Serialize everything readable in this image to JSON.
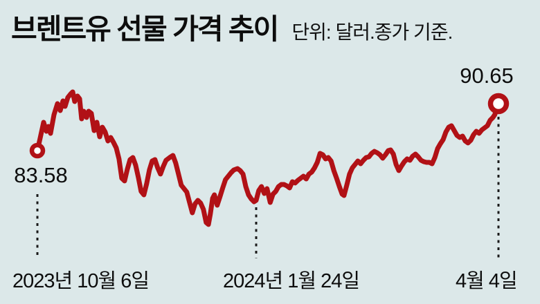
{
  "header": {
    "title": "브렌트유 선물 가격 추이",
    "unit_note": "단위: 달러.종가 기준."
  },
  "chart_data": {
    "type": "line",
    "title": "브렌트유 선물 가격 추이",
    "unit": "달러 (종가 기준)",
    "legend_position": "none",
    "grid": false,
    "y_axis_visible": false,
    "y_range_implied": [
      71.5,
      93.5
    ],
    "x_ticks": [
      {
        "label": "2023년 10월 6일",
        "t": 0.0
      },
      {
        "label": "2024년 1월 24일",
        "t": 0.4745
      },
      {
        "label": "4월 4일",
        "t": 1.0
      }
    ],
    "start_point": {
      "date": "2023년 10월 6일",
      "value": 83.58,
      "label": "83.58"
    },
    "end_point": {
      "date": "2024년 4월 4일",
      "value": 90.65,
      "label": "90.65"
    },
    "colors": {
      "line": "#b11116",
      "background": "#dce8e9",
      "text": "#0d0d0d",
      "dash": "#1a1a1a",
      "marker_fill": "#ffffff"
    },
    "series": [
      {
        "name": "브렌트유 선물 종가",
        "points": [
          [
            0.0,
            83.58
          ],
          [
            0.006,
            85.45
          ],
          [
            0.0135,
            87.84
          ],
          [
            0.0195,
            86.49
          ],
          [
            0.024,
            87.22
          ],
          [
            0.0285,
            86.18
          ],
          [
            0.036,
            88.99
          ],
          [
            0.0435,
            90.65
          ],
          [
            0.0495,
            89.61
          ],
          [
            0.0556,
            91.07
          ],
          [
            0.06,
            90.23
          ],
          [
            0.066,
            91.59
          ],
          [
            0.072,
            92.11
          ],
          [
            0.0766,
            92.42
          ],
          [
            0.081,
            90.96
          ],
          [
            0.087,
            91.79
          ],
          [
            0.0916,
            91.38
          ],
          [
            0.096,
            88.36
          ],
          [
            0.1006,
            89.51
          ],
          [
            0.1066,
            88.57
          ],
          [
            0.1111,
            89.51
          ],
          [
            0.117,
            89.19
          ],
          [
            0.1231,
            86.6
          ],
          [
            0.129,
            87.84
          ],
          [
            0.1351,
            85.66
          ],
          [
            0.141,
            87.11
          ],
          [
            0.147,
            86.39
          ],
          [
            0.153,
            85.04
          ],
          [
            0.159,
            85.56
          ],
          [
            0.165,
            84.83
          ],
          [
            0.171,
            84.0
          ],
          [
            0.177,
            82.33
          ],
          [
            0.183,
            79.42
          ],
          [
            0.189,
            79.01
          ],
          [
            0.195,
            80.77
          ],
          [
            0.201,
            82.23
          ],
          [
            0.207,
            82.54
          ],
          [
            0.213,
            81.4
          ],
          [
            0.219,
            79.52
          ],
          [
            0.225,
            77.45
          ],
          [
            0.231,
            76.93
          ],
          [
            0.237,
            78.59
          ],
          [
            0.243,
            80.67
          ],
          [
            0.249,
            82.02
          ],
          [
            0.255,
            82.23
          ],
          [
            0.261,
            80.98
          ],
          [
            0.267,
            80.05
          ],
          [
            0.273,
            81.19
          ],
          [
            0.279,
            82.12
          ],
          [
            0.287,
            82.54
          ],
          [
            0.294,
            82.85
          ],
          [
            0.3,
            81.71
          ],
          [
            0.306,
            80.05
          ],
          [
            0.312,
            78.38
          ],
          [
            0.318,
            77.86
          ],
          [
            0.324,
            77.34
          ],
          [
            0.33,
            75.78
          ],
          [
            0.336,
            74.22
          ],
          [
            0.342,
            75.57
          ],
          [
            0.348,
            76.09
          ],
          [
            0.354,
            75.68
          ],
          [
            0.36,
            74.74
          ],
          [
            0.366,
            72.77
          ],
          [
            0.371,
            72.46
          ],
          [
            0.375,
            74.02
          ],
          [
            0.38,
            76.41
          ],
          [
            0.384,
            76.93
          ],
          [
            0.39,
            75.37
          ],
          [
            0.396,
            76.62
          ],
          [
            0.402,
            77.97
          ],
          [
            0.408,
            79.21
          ],
          [
            0.414,
            79.73
          ],
          [
            0.42,
            80.25
          ],
          [
            0.426,
            80.67
          ],
          [
            0.434,
            80.88
          ],
          [
            0.44,
            80.57
          ],
          [
            0.446,
            80.05
          ],
          [
            0.452,
            78.17
          ],
          [
            0.458,
            76.93
          ],
          [
            0.464,
            76.3
          ],
          [
            0.47,
            75.89
          ],
          [
            0.4745,
            76.09
          ],
          [
            0.48,
            77.55
          ],
          [
            0.486,
            78.17
          ],
          [
            0.492,
            77.13
          ],
          [
            0.498,
            77.86
          ],
          [
            0.505,
            75.78
          ],
          [
            0.511,
            77.03
          ],
          [
            0.517,
            77.45
          ],
          [
            0.523,
            78.17
          ],
          [
            0.529,
            78.49
          ],
          [
            0.535,
            78.49
          ],
          [
            0.541,
            78.28
          ],
          [
            0.547,
            77.97
          ],
          [
            0.553,
            78.9
          ],
          [
            0.559,
            78.7
          ],
          [
            0.565,
            79.11
          ],
          [
            0.571,
            79.42
          ],
          [
            0.577,
            79.73
          ],
          [
            0.583,
            79.32
          ],
          [
            0.589,
            80.05
          ],
          [
            0.595,
            80.36
          ],
          [
            0.601,
            80.98
          ],
          [
            0.607,
            81.81
          ],
          [
            0.613,
            83.16
          ],
          [
            0.619,
            82.96
          ],
          [
            0.625,
            82.33
          ],
          [
            0.631,
            82.54
          ],
          [
            0.637,
            82.02
          ],
          [
            0.643,
            80.57
          ],
          [
            0.649,
            79.42
          ],
          [
            0.655,
            78.17
          ],
          [
            0.661,
            77.03
          ],
          [
            0.665,
            76.82
          ],
          [
            0.671,
            78.38
          ],
          [
            0.677,
            80.05
          ],
          [
            0.683,
            80.98
          ],
          [
            0.689,
            81.5
          ],
          [
            0.695,
            82.02
          ],
          [
            0.701,
            81.6
          ],
          [
            0.707,
            82.12
          ],
          [
            0.713,
            82.54
          ],
          [
            0.719,
            82.64
          ],
          [
            0.725,
            83.16
          ],
          [
            0.731,
            83.47
          ],
          [
            0.737,
            83.26
          ],
          [
            0.743,
            82.96
          ],
          [
            0.749,
            82.44
          ],
          [
            0.755,
            82.96
          ],
          [
            0.761,
            83.58
          ],
          [
            0.766,
            83.68
          ],
          [
            0.772,
            83.06
          ],
          [
            0.778,
            81.5
          ],
          [
            0.784,
            80.57
          ],
          [
            0.79,
            81.29
          ],
          [
            0.796,
            81.92
          ],
          [
            0.802,
            82.33
          ],
          [
            0.808,
            82.12
          ],
          [
            0.814,
            82.75
          ],
          [
            0.82,
            83.06
          ],
          [
            0.826,
            82.64
          ],
          [
            0.832,
            82.12
          ],
          [
            0.838,
            81.92
          ],
          [
            0.844,
            81.81
          ],
          [
            0.85,
            81.81
          ],
          [
            0.856,
            81.6
          ],
          [
            0.862,
            82.54
          ],
          [
            0.868,
            83.89
          ],
          [
            0.874,
            84.62
          ],
          [
            0.88,
            85.24
          ],
          [
            0.886,
            86.39
          ],
          [
            0.892,
            87.11
          ],
          [
            0.898,
            87.32
          ],
          [
            0.904,
            86.6
          ],
          [
            0.91,
            85.87
          ],
          [
            0.916,
            85.56
          ],
          [
            0.922,
            85.76
          ],
          [
            0.928,
            85.04
          ],
          [
            0.934,
            84.73
          ],
          [
            0.94,
            85.14
          ],
          [
            0.946,
            85.97
          ],
          [
            0.952,
            86.49
          ],
          [
            0.958,
            86.18
          ],
          [
            0.964,
            86.7
          ],
          [
            0.97,
            87.01
          ],
          [
            0.976,
            87.32
          ],
          [
            0.982,
            88.15
          ],
          [
            0.988,
            88.57
          ],
          [
            0.992,
            88.99
          ],
          [
            0.997,
            90.03
          ],
          [
            1.0,
            90.65
          ]
        ]
      }
    ]
  }
}
